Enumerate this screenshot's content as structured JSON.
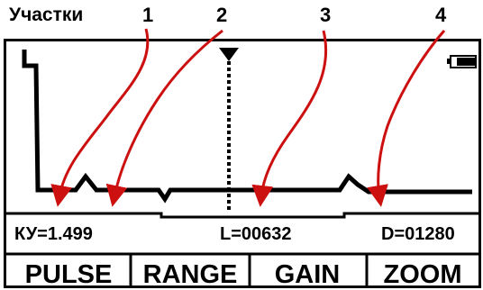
{
  "header": {
    "title": "Участки",
    "markers": [
      "1",
      "2",
      "3",
      "4"
    ]
  },
  "status": {
    "ky": "КУ=1.499",
    "l": "L=00632",
    "d": "D=01280"
  },
  "buttons": [
    {
      "label": "PULSE"
    },
    {
      "label": "RANGE"
    },
    {
      "label": "GAIN"
    },
    {
      "label": "ZOOM"
    }
  ],
  "colors": {
    "arrow": "#cc1010",
    "frame": "#000000"
  },
  "icons": [
    "battery-icon",
    "cursor-marker-icon"
  ]
}
